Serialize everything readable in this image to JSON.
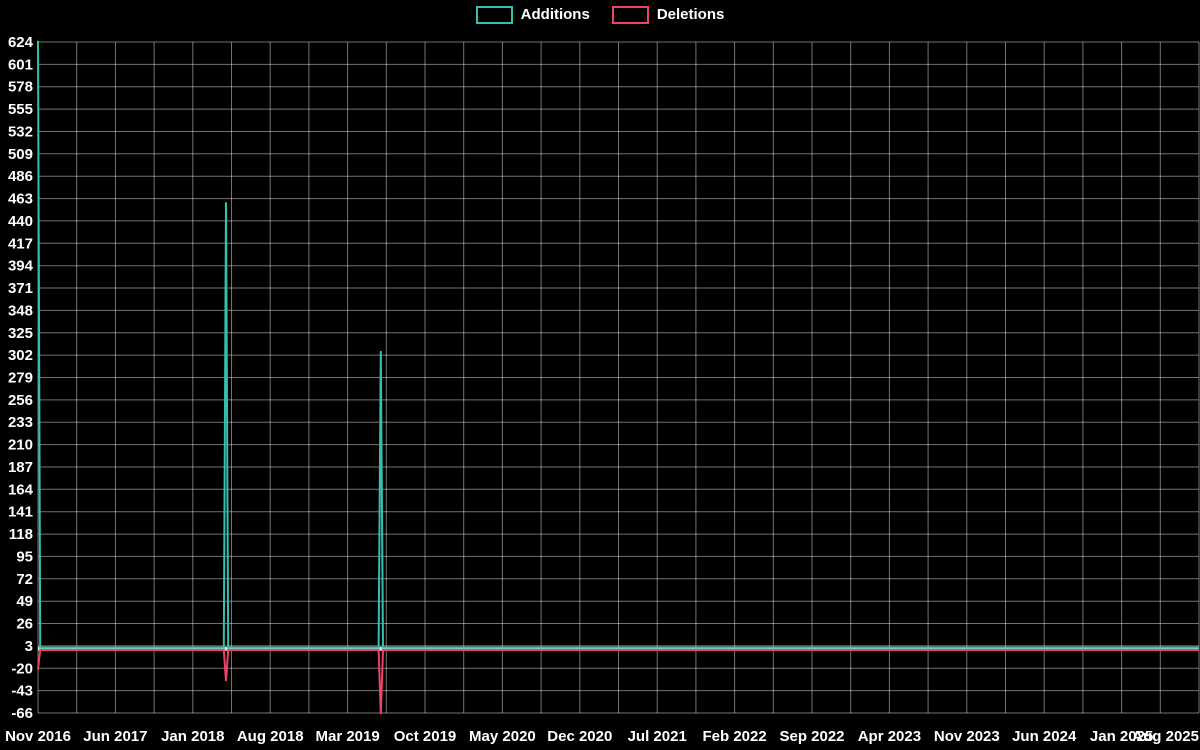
{
  "page": {
    "background": "#000000"
  },
  "chart_data": {
    "type": "line",
    "title": "",
    "xlabel": "",
    "ylabel": "",
    "background": "#000000",
    "grid": true,
    "grid_color": "rgba(255,255,255,0.45)",
    "tick_label_color": "#ffffff",
    "baseline_band_color": "#d9d9d9",
    "legend_position": "top-center",
    "ylim": [
      -66,
      624
    ],
    "y_tick_step": 23,
    "y_ticks": [
      624,
      601,
      578,
      555,
      532,
      509,
      486,
      463,
      440,
      417,
      394,
      371,
      348,
      325,
      302,
      279,
      256,
      233,
      210,
      187,
      164,
      141,
      118,
      95,
      72,
      49,
      26,
      3,
      -20,
      -43,
      -66
    ],
    "x_axis": {
      "unit": "month",
      "months_total": 105,
      "tick_every_months": 7,
      "minor_grid_every_months": 3.5,
      "tick_labels": [
        "Nov 2016",
        "Jun 2017",
        "Jan 2018",
        "Aug 2018",
        "Mar 2019",
        "Oct 2019",
        "May 2020",
        "Dec 2020",
        "Jul 2021",
        "Feb 2022",
        "Sep 2022",
        "Apr 2023",
        "Nov 2023",
        "Jun 2024",
        "Jan 2025",
        "Aug 2025"
      ]
    },
    "series": [
      {
        "name": "Additions",
        "color": "#35c0ad",
        "baseline_value": 0,
        "spikes": [
          {
            "x_label": "Nov 2016",
            "month_index": 0,
            "value": 624
          },
          {
            "x_label": "Apr 2018",
            "month_index": 17,
            "value": 458
          },
          {
            "x_label": "Jun 2019",
            "month_index": 31,
            "value": 305
          }
        ]
      },
      {
        "name": "Deletions",
        "color": "#ee4266",
        "baseline_value": 0,
        "spikes": [
          {
            "x_label": "Nov 2016",
            "month_index": 0,
            "value": -20
          },
          {
            "x_label": "Apr 2018",
            "month_index": 17,
            "value": -32
          },
          {
            "x_label": "Jun 2019",
            "month_index": 31,
            "value": -66
          }
        ]
      }
    ]
  }
}
